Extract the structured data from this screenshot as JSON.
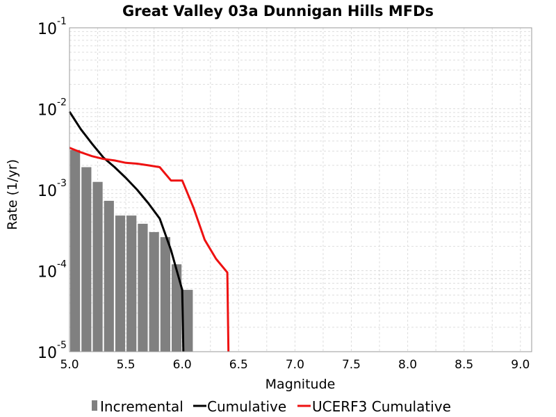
{
  "chart_data": {
    "type": "bar",
    "title": "Great Valley 03a Dunnigan Hills MFDs",
    "xlabel": "Magnitude",
    "ylabel": "Rate (1/yr)",
    "y_scale": "log",
    "xlim": [
      5.0,
      9.1
    ],
    "ylim": [
      1e-05,
      0.1
    ],
    "x_ticks": [
      "5.0",
      "5.5",
      "6.0",
      "6.5",
      "7.0",
      "7.5",
      "8.0",
      "8.5",
      "9.0"
    ],
    "y_ticks": [
      {
        "base": "10",
        "exp": "-5"
      },
      {
        "base": "10",
        "exp": "-4"
      },
      {
        "base": "10",
        "exp": "-3"
      },
      {
        "base": "10",
        "exp": "-2"
      },
      {
        "base": "10",
        "exp": "-1"
      }
    ],
    "grid": true,
    "legend_position": "bottom",
    "series": [
      {
        "name": "Incremental",
        "type": "bar",
        "color": "#808080",
        "x": [
          5.05,
          5.15,
          5.25,
          5.35,
          5.45,
          5.55,
          5.65,
          5.75,
          5.85,
          5.95,
          6.05
        ],
        "values": [
          0.0031,
          0.0019,
          0.00125,
          0.00073,
          0.00048,
          0.00048,
          0.00038,
          0.0003,
          0.00026,
          0.00012,
          5.8e-05
        ]
      },
      {
        "name": "Cumulative",
        "type": "line",
        "color": "#000000",
        "x": [
          5.0,
          5.1,
          5.2,
          5.3,
          5.4,
          5.5,
          5.6,
          5.7,
          5.8,
          5.9,
          6.0,
          6.01
        ],
        "values": [
          0.0092,
          0.0056,
          0.0037,
          0.0025,
          0.0019,
          0.0014,
          0.001,
          0.00068,
          0.00044,
          0.00018,
          5.8e-05,
          1e-05
        ]
      },
      {
        "name": "UCERF3 Cumulative",
        "type": "line",
        "color": "#ee1111",
        "x": [
          5.0,
          5.1,
          5.2,
          5.3,
          5.4,
          5.5,
          5.6,
          5.7,
          5.8,
          5.9,
          6.0,
          6.1,
          6.2,
          6.3,
          6.4,
          6.41
        ],
        "values": [
          0.0033,
          0.0029,
          0.0026,
          0.0024,
          0.0023,
          0.00215,
          0.0021,
          0.002,
          0.0019,
          0.0013,
          0.0013,
          0.0006,
          0.00024,
          0.00014,
          9.5e-05,
          1e-05
        ]
      }
    ]
  }
}
